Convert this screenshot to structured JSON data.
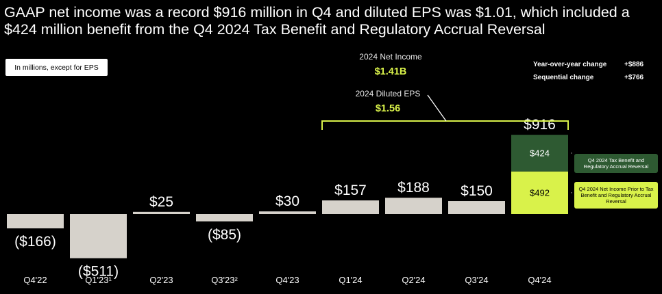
{
  "title": "GAAP net income was a record $916 million in Q4 and diluted EPS was $1.01, which included a $424 million benefit from the Q4 2024 Tax Benefit and Regulatory Accrual Reversal",
  "units_note": "In millions, except for EPS",
  "summary": {
    "net_income_label": "2024 Net Income",
    "net_income_value": "$1.41B",
    "eps_label": "2024 Diluted EPS",
    "eps_value": "$1.56"
  },
  "changes": {
    "yoy_label": "Year-over-year change",
    "yoy_value": "+$886",
    "seq_label": "Sequential change",
    "seq_value": "+$766"
  },
  "colors": {
    "neutral_bar": "#d6d2cb",
    "highlight_bar": "#d9f24a",
    "benefit_bar": "#2e5a32",
    "bracket": "#d9f24a"
  },
  "chart_data": {
    "type": "bar",
    "categories": [
      "Q4'22",
      "Q1'23¹",
      "Q2'23",
      "Q3'23²",
      "Q4'23",
      "Q1'24",
      "Q2'24",
      "Q3'24",
      "Q4'24"
    ],
    "values": [
      -166,
      -511,
      25,
      -85,
      30,
      157,
      188,
      150,
      916
    ],
    "value_labels": [
      "($166)",
      "($511)",
      "$25",
      "($85)",
      "$30",
      "$157",
      "$188",
      "$150",
      "$916"
    ],
    "stacked_last": {
      "segments": [
        {
          "name": "Q4 2024 Net Income Prior to Tax Benefit and Regulatory Accrual Reversal",
          "value": 492,
          "label": "$492"
        },
        {
          "name": "Q4 2024 Tax Benefit and Regulatory Accrual Reversal",
          "value": 424,
          "label": "$424"
        }
      ]
    },
    "bracket_span": [
      "Q1'24",
      "Q4'24"
    ]
  }
}
